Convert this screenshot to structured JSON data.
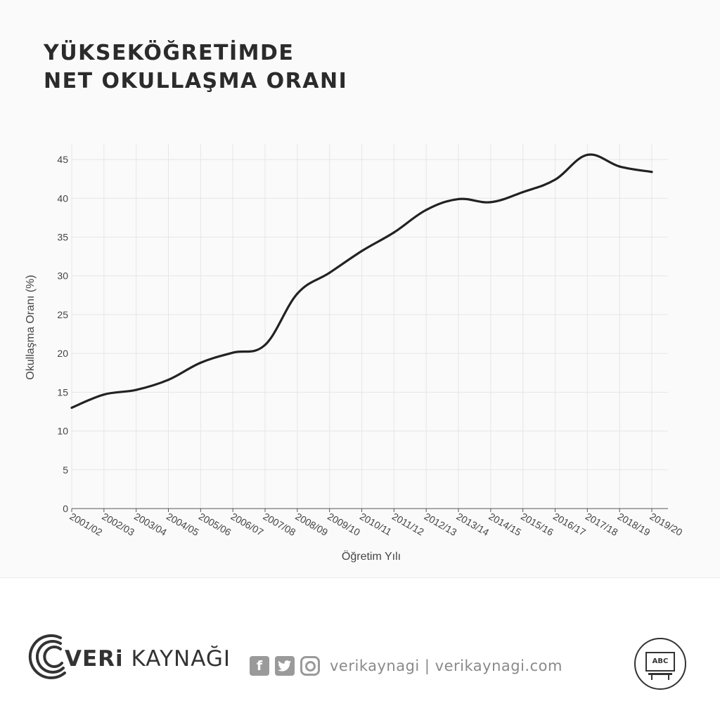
{
  "header": {
    "title_line1": "YÜKSEKÖĞRETİMDE",
    "title_line2": "NET OKULLAŞMA ORANI"
  },
  "footer": {
    "brand_bold": "VERi",
    "brand_rest": " KAYNAĞI",
    "social_handles": "verikaynagi | verikaynagi.com",
    "facebook_glyph": "f",
    "badge_text": "ABC",
    "icons": [
      "logo-arcs-icon",
      "facebook-icon",
      "twitter-icon",
      "instagram-icon",
      "classroom-board-icon"
    ]
  },
  "colors": {
    "line": "#222222",
    "grid": "#e6e6e6",
    "axis_text": "#444444",
    "accent_gray": "#9a9a9a"
  },
  "chart_data": {
    "type": "line",
    "title": "",
    "xlabel": "Öğretim Yılı",
    "ylabel": "Okullaşma Oranı (%)",
    "ylim": [
      0,
      47
    ],
    "yticks": [
      0,
      5,
      10,
      15,
      20,
      25,
      30,
      35,
      40,
      45
    ],
    "grid": true,
    "categories": [
      "2001/02",
      "2002/03",
      "2003/04",
      "2004/05",
      "2005/06",
      "2006/07",
      "2007/08",
      "2008/09",
      "2009/10",
      "2010/11",
      "2011/12",
      "2012/13",
      "2013/14",
      "2014/15",
      "2015/16",
      "2016/17",
      "2017/18",
      "2018/19",
      "2019/20"
    ],
    "series": [
      {
        "values": [
          13.0,
          14.7,
          15.3,
          16.6,
          18.8,
          20.1,
          21.1,
          27.7,
          30.4,
          33.2,
          35.6,
          38.5,
          39.9,
          39.5,
          40.8,
          42.4,
          45.6,
          44.1,
          43.4
        ]
      }
    ]
  }
}
